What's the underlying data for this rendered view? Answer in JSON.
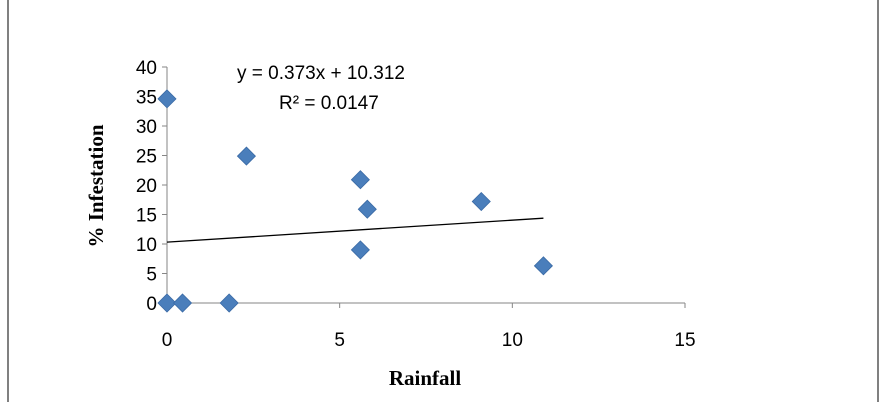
{
  "chart_data": {
    "type": "scatter",
    "title": "",
    "xlabel": "Rainfall",
    "ylabel": "% Infestation",
    "xlim": [
      0,
      15
    ],
    "ylim": [
      0,
      40
    ],
    "x_ticks": [
      "0",
      "5",
      "10",
      "15"
    ],
    "y_ticks": [
      "0",
      "5",
      "10",
      "15",
      "20",
      "25",
      "30",
      "35",
      "40"
    ],
    "grid": false,
    "legend": "none",
    "marker_color": "#4a7ebb",
    "marker_shape": "diamond",
    "points": [
      {
        "x": 0.0,
        "y": 34.6
      },
      {
        "x": 0.0,
        "y": 0.0
      },
      {
        "x": 0.45,
        "y": 0.0
      },
      {
        "x": 1.8,
        "y": 0.0
      },
      {
        "x": 2.3,
        "y": 24.9
      },
      {
        "x": 5.6,
        "y": 20.9
      },
      {
        "x": 5.8,
        "y": 15.9
      },
      {
        "x": 5.6,
        "y": 9.0
      },
      {
        "x": 9.1,
        "y": 17.2
      },
      {
        "x": 10.9,
        "y": 6.3
      }
    ],
    "trendline": {
      "type": "linear",
      "slope": 0.373,
      "intercept": 10.312,
      "x_range": [
        0,
        10.9
      ],
      "equation_label": "y = 0.373x + 10.312",
      "r2_label": "R² = 0.0147"
    }
  }
}
